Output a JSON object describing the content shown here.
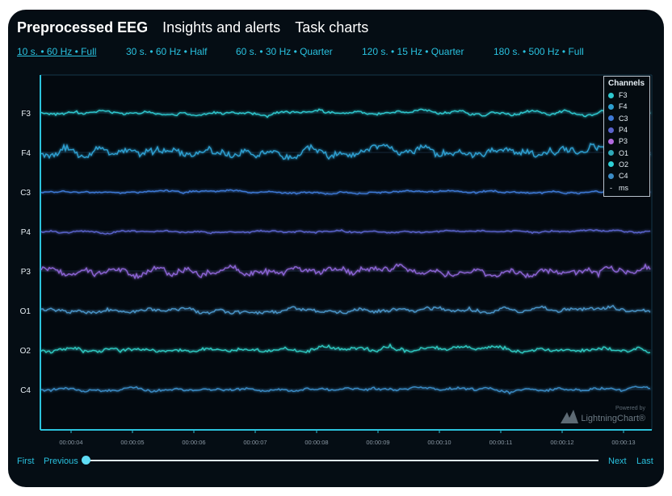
{
  "tabs": [
    {
      "label": "Preprocessed EEG",
      "active": true
    },
    {
      "label": "Insights and alerts",
      "active": false
    },
    {
      "label": "Task charts",
      "active": false
    }
  ],
  "presets": [
    {
      "label": "10 s. • 60 Hz • Full",
      "active": true
    },
    {
      "label": "30 s. • 60 Hz • Half",
      "active": false
    },
    {
      "label": "60 s. • 30 Hz • Quarter",
      "active": false
    },
    {
      "label": "120 s. • 15 Hz • Quarter",
      "active": false
    },
    {
      "label": "180 s. • 500 Hz • Full",
      "active": false
    }
  ],
  "chart": {
    "channels": [
      {
        "name": "F3",
        "color": "#2ec8cf"
      },
      {
        "name": "F4",
        "color": "#2d9fd0"
      },
      {
        "name": "C3",
        "color": "#3d79d6"
      },
      {
        "name": "P4",
        "color": "#5a63cc"
      },
      {
        "name": "P3",
        "color": "#8a63d2"
      },
      {
        "name": "O1",
        "color": "#4a94c7"
      },
      {
        "name": "O2",
        "color": "#2ec8c0"
      },
      {
        "name": "C4",
        "color": "#3b8cc6"
      }
    ],
    "time_labels": [
      "00:00:04",
      "00:00:05",
      "00:00:06",
      "00:00:07",
      "00:00:08",
      "00:00:09",
      "00:00:10",
      "00:00:11",
      "00:00:12",
      "00:00:13"
    ]
  },
  "legend": {
    "title": "Channels",
    "items": [
      {
        "label": "F3",
        "color": "#2ec8cf"
      },
      {
        "label": "F4",
        "color": "#2d9fd0"
      },
      {
        "label": "C3",
        "color": "#3d79d6"
      },
      {
        "label": "P4",
        "color": "#5a63cc"
      },
      {
        "label": "P3",
        "color": "#b36ae0"
      },
      {
        "label": "O1",
        "color": "#2fa9b8"
      },
      {
        "label": "O2",
        "color": "#2ed0d6"
      },
      {
        "label": "C4",
        "color": "#3b8cc6"
      }
    ],
    "extra_label": "ms"
  },
  "watermark": {
    "small": "Powered by",
    "brand": "LightningChart®"
  },
  "nav": {
    "first": "First",
    "previous": "Previous",
    "next": "Next",
    "last": "Last"
  },
  "slider": {
    "position": 0
  }
}
